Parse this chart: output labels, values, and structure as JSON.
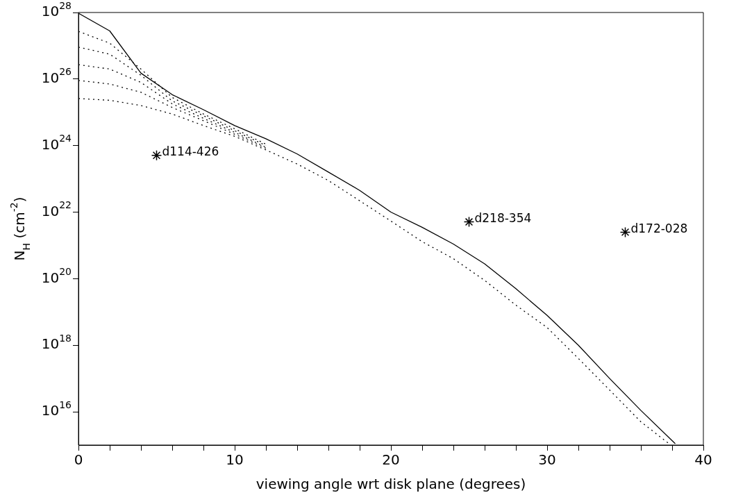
{
  "chart_data": {
    "type": "line",
    "xlabel": "viewing angle wrt disk plane (degrees)",
    "ylabel": "N$_{H}$ (cm$^{-2}$)",
    "log": "y",
    "grid": false,
    "legend": false,
    "xlim": [
      0,
      40
    ],
    "ylim": [
      1000000000000000.0,
      1e+28
    ],
    "xticks": [
      0,
      {
        "value": 2,
        "label": null
      },
      {
        "value": 4,
        "label": null
      },
      {
        "value": 6,
        "label": null
      },
      {
        "value": 8,
        "label": null
      },
      10,
      {
        "value": 12,
        "label": null
      },
      {
        "value": 14,
        "label": null
      },
      {
        "value": 16,
        "label": null
      },
      {
        "value": 18,
        "label": null
      },
      20,
      {
        "value": 22,
        "label": null
      },
      {
        "value": 24,
        "label": null
      },
      {
        "value": 26,
        "label": null
      },
      {
        "value": 28,
        "label": null
      },
      30,
      {
        "value": 32,
        "label": null
      },
      {
        "value": 34,
        "label": null
      },
      {
        "value": 36,
        "label": null
      },
      {
        "value": 38,
        "label": null
      },
      40
    ],
    "yticks": [
      {
        "value": 1e+16,
        "label": "10$^{16}$"
      },
      {
        "value": 1e+18,
        "label": "10$^{18}$"
      },
      {
        "value": 1e+20,
        "label": "10$^{20}$"
      },
      {
        "value": 1e+22,
        "label": "10$^{22}$"
      },
      {
        "value": 1e+24,
        "label": "10$^{24}$"
      },
      {
        "value": 1e+26,
        "label": "10$^{26}$"
      },
      {
        "value": 1e+28,
        "label": "10$^{28}$"
      }
    ],
    "series": [
      {
        "type": "line",
        "line_style": "solid",
        "marker": "none",
        "color": "#000000",
        "x": [
          0,
          2,
          4,
          6,
          8,
          10,
          12,
          14,
          16,
          18,
          20,
          22,
          24,
          26,
          28,
          30,
          32,
          34,
          36,
          38.2
        ],
        "values": [
          9.5e+27,
          2.8e+27,
          1.5e+26,
          3.4e+25,
          1.2e+25,
          4e+24,
          1.6e+24,
          5.6e+23,
          1.6e+23,
          4.5e+22,
          1e+22,
          3.5e+21,
          1.1e+21,
          2.8e+20,
          5e+19,
          7.9e+18,
          1e+18,
          1e+17,
          1.1e+16,
          1100000000000000.0
        ]
      },
      {
        "type": "line",
        "line_style": "dotted",
        "marker": "none",
        "color": "#000000",
        "x": [
          0,
          2,
          4,
          6,
          8,
          10,
          12
        ],
        "values": [
          2.7e+27,
          1.2e+27,
          2e+26,
          2.8e+25,
          8.9e+24,
          3.2e+24,
          1.1e+24
        ]
      },
      {
        "type": "line",
        "line_style": "dotted",
        "marker": "none",
        "color": "#000000",
        "x": [
          0,
          2,
          4,
          6,
          8,
          10,
          12
        ],
        "values": [
          9.1e+26,
          5.6e+26,
          1.3e+26,
          2.2e+25,
          7.9e+24,
          2.8e+24,
          1e+24
        ]
      },
      {
        "type": "line",
        "line_style": "dotted",
        "marker": "none",
        "color": "#000000",
        "x": [
          0,
          2,
          4,
          6,
          8,
          10,
          12
        ],
        "values": [
          2.7e+26,
          2e+26,
          7.9e+25,
          1.8e+25,
          6.6e+24,
          2.5e+24,
          8.9e+23
        ]
      },
      {
        "type": "line",
        "line_style": "dotted",
        "marker": "none",
        "color": "#000000",
        "x": [
          0,
          2,
          4,
          6,
          8,
          10,
          12
        ],
        "values": [
          9.1e+25,
          7.1e+25,
          4e+25,
          1.4e+25,
          5.6e+24,
          2.2e+24,
          8.3e+23
        ]
      },
      {
        "type": "line",
        "line_style": "dotted",
        "marker": "none",
        "color": "#000000",
        "x": [
          0,
          2,
          4,
          6,
          8,
          10,
          12,
          14,
          16,
          18,
          20,
          22,
          24,
          26,
          28,
          30,
          32,
          34,
          36,
          37.8
        ],
        "values": [
          2.6e+25,
          2.3e+25,
          1.6e+25,
          8.9e+24,
          4e+24,
          1.9e+24,
          7.4e+23,
          2.8e+23,
          8.9e+22,
          2.2e+22,
          5.4e+21,
          1.3e+21,
          4e+20,
          8.9e+19,
          1.6e+19,
          3.4e+18,
          4e+17,
          4.5e+16,
          5000000000000000.0,
          1100000000000000.0
        ]
      },
      {
        "type": "scatter",
        "marker": "cross",
        "color": "#000000",
        "x": [
          5,
          25,
          35
        ],
        "values": [
          5.1e+23,
          5.1e+21,
          2.5e+21
        ]
      }
    ],
    "annotations": [
      {
        "text": "d114-426",
        "x": 5,
        "y": 5.1e+23
      },
      {
        "text": "d218-354",
        "x": 25,
        "y": 5.1e+21
      },
      {
        "text": "d172-028",
        "x": 35,
        "y": 2.5e+21
      }
    ]
  }
}
